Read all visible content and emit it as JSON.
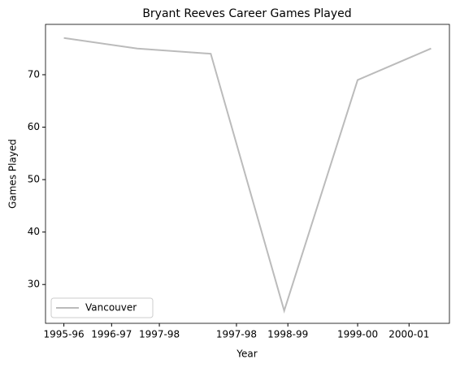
{
  "chart_data": {
    "type": "line",
    "title": "Bryant Reeves Career Games Played",
    "xlabel": "Year",
    "ylabel": "Games Played",
    "x": [
      0,
      1,
      2,
      3,
      4,
      5
    ],
    "series": [
      {
        "name": "Vancouver",
        "color": "#bbbbbb",
        "values": [
          77,
          75,
          74,
          25,
          69,
          75
        ]
      }
    ],
    "xlim": [
      -0.25,
      5.25
    ],
    "xticks": [
      {
        "value": 0,
        "label": "1995-96"
      },
      {
        "value": 0.65,
        "label": "1996-97"
      },
      {
        "value": 1.3,
        "label": "1997-98"
      },
      {
        "value": 2.35,
        "label": "1997-98"
      },
      {
        "value": 3.05,
        "label": "1998-99"
      },
      {
        "value": 4,
        "label": "1999-00"
      },
      {
        "value": 4.7,
        "label": "2000-01"
      }
    ],
    "ylim": [
      22.6,
      79.6
    ],
    "yticks": [
      30,
      40,
      50,
      60,
      70
    ],
    "legend": "lower left"
  }
}
